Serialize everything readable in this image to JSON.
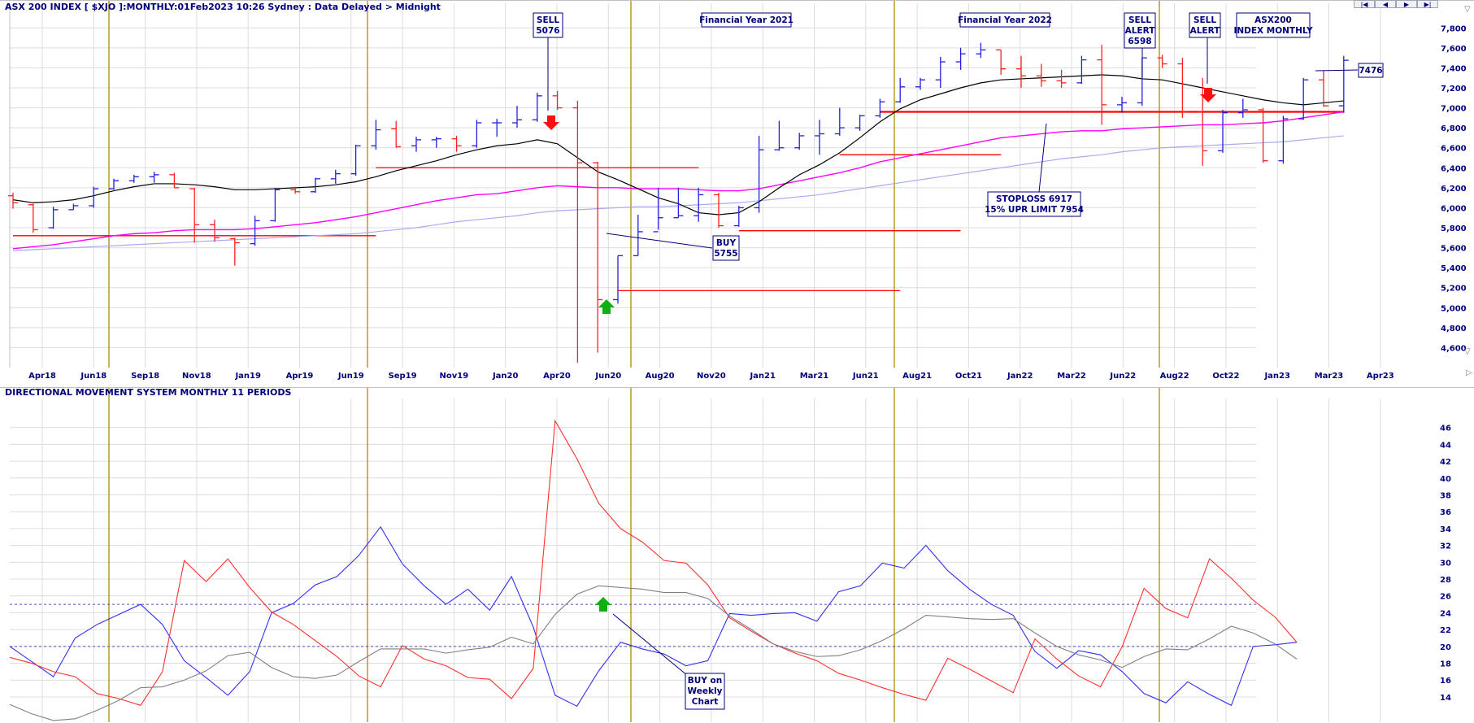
{
  "header": {
    "title": "ASX 200 INDEX [ $XJO ]:MONTHLY:01Feb2023 10:26 Sydney : Data Delayed > Midnight",
    "indicator_title": "DIRECTIONAL MOVEMENT SYSTEM MONTHLY 11 PERIODS"
  },
  "nav": {
    "first": "|◀",
    "prev": "◀",
    "next": "▶",
    "last": "▶|"
  },
  "colors": {
    "up_bar": "#2020e0",
    "down_bar": "#ff2020",
    "ma_short": "#000000",
    "ma_mid": "#ff00ff",
    "ma_long": "#aaaaf0",
    "sr_line": "#ff0000",
    "vline": "#b08a00",
    "grid": "#dcdcdc",
    "text": "#00007a",
    "di_plus": "#3030f0",
    "di_minus": "#ff3030",
    "adx": "#808080",
    "ref_line": "#5050c0"
  },
  "chart_data": [
    {
      "type": "ohlc",
      "name": "price",
      "xlabels": [
        "Apr18",
        "Jun18",
        "Sep18",
        "Nov18",
        "Jan19",
        "Apr19",
        "Jun19",
        "Sep19",
        "Nov19",
        "Jan20",
        "Apr20",
        "Jun20",
        "Aug20",
        "Nov20",
        "Jan21",
        "Mar21",
        "Jun21",
        "Aug21",
        "Oct21",
        "Jan22",
        "Mar22",
        "Jun22",
        "Aug22",
        "Oct22",
        "Jan23",
        "Mar23",
        "Apr23"
      ],
      "ylim": [
        4400,
        7900
      ],
      "yticks": [
        4600,
        4800,
        5000,
        5200,
        5400,
        5600,
        5800,
        6000,
        6200,
        6400,
        6600,
        6800,
        7000,
        7200,
        7400,
        7600,
        7800
      ],
      "bars": [
        {
          "o": 6120,
          "h": 6150,
          "l": 5990,
          "c": 6050
        },
        {
          "o": 6030,
          "h": 6040,
          "l": 5750,
          "c": 5780
        },
        {
          "o": 5800,
          "h": 6010,
          "l": 5790,
          "c": 5980
        },
        {
          "o": 5980,
          "h": 6040,
          "l": 5980,
          "c": 6020
        },
        {
          "o": 6020,
          "h": 6210,
          "l": 6000,
          "c": 6190
        },
        {
          "o": 6190,
          "h": 6290,
          "l": 6180,
          "c": 6270
        },
        {
          "o": 6270,
          "h": 6330,
          "l": 6250,
          "c": 6310
        },
        {
          "o": 6310,
          "h": 6360,
          "l": 6250,
          "c": 6330
        },
        {
          "o": 6330,
          "h": 6350,
          "l": 6200,
          "c": 6200
        },
        {
          "o": 6190,
          "h": 6200,
          "l": 5650,
          "c": 5830
        },
        {
          "o": 5830,
          "h": 5880,
          "l": 5660,
          "c": 5700
        },
        {
          "o": 5690,
          "h": 5700,
          "l": 5420,
          "c": 5650
        },
        {
          "o": 5640,
          "h": 5920,
          "l": 5620,
          "c": 5870
        },
        {
          "o": 5870,
          "h": 6200,
          "l": 5860,
          "c": 6180
        },
        {
          "o": 6180,
          "h": 6210,
          "l": 6140,
          "c": 6160
        },
        {
          "o": 6160,
          "h": 6300,
          "l": 6150,
          "c": 6290
        },
        {
          "o": 6290,
          "h": 6380,
          "l": 6240,
          "c": 6340
        },
        {
          "o": 6340,
          "h": 6630,
          "l": 6320,
          "c": 6620
        },
        {
          "o": 6620,
          "h": 6880,
          "l": 6580,
          "c": 6780
        },
        {
          "o": 6790,
          "h": 6870,
          "l": 6600,
          "c": 6610
        },
        {
          "o": 6620,
          "h": 6710,
          "l": 6560,
          "c": 6680
        },
        {
          "o": 6680,
          "h": 6710,
          "l": 6600,
          "c": 6690
        },
        {
          "o": 6690,
          "h": 6720,
          "l": 6560,
          "c": 6620
        },
        {
          "o": 6620,
          "h": 6880,
          "l": 6600,
          "c": 6850
        },
        {
          "o": 6850,
          "h": 6890,
          "l": 6710,
          "c": 6850
        },
        {
          "o": 6850,
          "h": 7020,
          "l": 6800,
          "c": 6880
        },
        {
          "o": 6880,
          "h": 7150,
          "l": 6860,
          "c": 7120
        },
        {
          "o": 7120,
          "h": 7170,
          "l": 6980,
          "c": 7000
        },
        {
          "o": 7000,
          "h": 7070,
          "l": 4450,
          "c": 6450
        },
        {
          "o": 6450,
          "h": 6460,
          "l": 4550,
          "c": 5080
        },
        {
          "o": 5080,
          "h": 5520,
          "l": 5040,
          "c": 5520
        },
        {
          "o": 5520,
          "h": 5930,
          "l": 5520,
          "c": 5760
        },
        {
          "o": 5760,
          "h": 6200,
          "l": 5780,
          "c": 5900
        },
        {
          "o": 5900,
          "h": 6200,
          "l": 5900,
          "c": 5920
        },
        {
          "o": 5920,
          "h": 6200,
          "l": 5860,
          "c": 6130
        },
        {
          "o": 6130,
          "h": 6150,
          "l": 5800,
          "c": 5820
        },
        {
          "o": 5820,
          "h": 6020,
          "l": 5810,
          "c": 6000
        },
        {
          "o": 6000,
          "h": 6720,
          "l": 5950,
          "c": 6580
        },
        {
          "o": 6580,
          "h": 6870,
          "l": 6570,
          "c": 6600
        },
        {
          "o": 6600,
          "h": 6750,
          "l": 6580,
          "c": 6720
        },
        {
          "o": 6720,
          "h": 6880,
          "l": 6530,
          "c": 6740
        },
        {
          "o": 6740,
          "h": 7000,
          "l": 6720,
          "c": 6800
        },
        {
          "o": 6800,
          "h": 6930,
          "l": 6770,
          "c": 6920
        },
        {
          "o": 6920,
          "h": 7090,
          "l": 6900,
          "c": 7060
        },
        {
          "o": 7060,
          "h": 7300,
          "l": 7050,
          "c": 7210
        },
        {
          "o": 7210,
          "h": 7300,
          "l": 7180,
          "c": 7280
        },
        {
          "o": 7280,
          "h": 7510,
          "l": 7200,
          "c": 7460
        },
        {
          "o": 7460,
          "h": 7600,
          "l": 7380,
          "c": 7540
        },
        {
          "o": 7540,
          "h": 7650,
          "l": 7500,
          "c": 7580
        },
        {
          "o": 7580,
          "h": 7580,
          "l": 7330,
          "c": 7390
        },
        {
          "o": 7390,
          "h": 7520,
          "l": 7200,
          "c": 7320
        },
        {
          "o": 7320,
          "h": 7440,
          "l": 7210,
          "c": 7270
        },
        {
          "o": 7270,
          "h": 7380,
          "l": 7200,
          "c": 7250
        },
        {
          "o": 7250,
          "h": 7520,
          "l": 7240,
          "c": 7480
        },
        {
          "o": 7480,
          "h": 7630,
          "l": 6830,
          "c": 7030
        },
        {
          "o": 7030,
          "h": 7110,
          "l": 6950,
          "c": 7050
        },
        {
          "o": 7050,
          "h": 7500,
          "l": 7020,
          "c": 7500
        },
        {
          "o": 7500,
          "h": 7530,
          "l": 7400,
          "c": 7440
        },
        {
          "o": 7440,
          "h": 7500,
          "l": 6900,
          "c": 6960
        },
        {
          "o": 6960,
          "h": 7300,
          "l": 6420,
          "c": 6570
        },
        {
          "o": 6570,
          "h": 6980,
          "l": 6550,
          "c": 6950
        },
        {
          "o": 6950,
          "h": 7090,
          "l": 6900,
          "c": 6980
        },
        {
          "o": 6980,
          "h": 7000,
          "l": 6450,
          "c": 6470
        },
        {
          "o": 6470,
          "h": 6920,
          "l": 6440,
          "c": 6890
        },
        {
          "o": 6890,
          "h": 7300,
          "l": 6880,
          "c": 7280
        },
        {
          "o": 7280,
          "h": 7370,
          "l": 7010,
          "c": 7020
        },
        {
          "o": 7020,
          "h": 7520,
          "l": 6950,
          "c": 7476
        }
      ],
      "ma_short": [
        6080,
        6050,
        6060,
        6080,
        6120,
        6170,
        6210,
        6240,
        6240,
        6230,
        6210,
        6180,
        6180,
        6190,
        6200,
        6210,
        6230,
        6260,
        6310,
        6370,
        6420,
        6470,
        6530,
        6580,
        6620,
        6640,
        6680,
        6640,
        6500,
        6360,
        6280,
        6190,
        6100,
        6040,
        5950,
        5930,
        5950,
        6060,
        6200,
        6330,
        6430,
        6550,
        6700,
        6860,
        6990,
        7080,
        7140,
        7200,
        7250,
        7280,
        7290,
        7300,
        7310,
        7320,
        7330,
        7320,
        7290,
        7280,
        7240,
        7200,
        7160,
        7120,
        7080,
        7050,
        7030,
        7050,
        7070
      ],
      "ma_mid": [
        5590,
        5610,
        5630,
        5660,
        5690,
        5720,
        5740,
        5750,
        5770,
        5780,
        5780,
        5780,
        5790,
        5810,
        5830,
        5850,
        5880,
        5910,
        5950,
        5990,
        6030,
        6070,
        6100,
        6130,
        6140,
        6170,
        6200,
        6220,
        6210,
        6200,
        6200,
        6190,
        6190,
        6190,
        6180,
        6170,
        6170,
        6190,
        6230,
        6270,
        6310,
        6350,
        6400,
        6460,
        6500,
        6540,
        6580,
        6620,
        6660,
        6700,
        6720,
        6740,
        6760,
        6770,
        6770,
        6790,
        6800,
        6810,
        6820,
        6830,
        6830,
        6840,
        6850,
        6870,
        6900,
        6930,
        6960
      ],
      "ma_long": [
        5570,
        5580,
        5590,
        5600,
        5610,
        5620,
        5630,
        5640,
        5650,
        5660,
        5670,
        5680,
        5690,
        5700,
        5710,
        5720,
        5730,
        5740,
        5760,
        5780,
        5800,
        5830,
        5860,
        5880,
        5900,
        5920,
        5950,
        5970,
        5980,
        5990,
        6000,
        6010,
        6010,
        6020,
        6030,
        6040,
        6050,
        6070,
        6090,
        6110,
        6130,
        6160,
        6190,
        6220,
        6250,
        6280,
        6310,
        6340,
        6370,
        6400,
        6430,
        6460,
        6490,
        6510,
        6530,
        6560,
        6580,
        6600,
        6610,
        6620,
        6630,
        6640,
        6650,
        6660,
        6680,
        6700,
        6720
      ],
      "hlines": [
        {
          "y": 5720,
          "x0": 0,
          "x1": 18
        },
        {
          "y": 6400,
          "x0": 18,
          "x1": 34
        },
        {
          "y": 6530,
          "x0": 41,
          "x1": 49
        },
        {
          "y": 5770,
          "x0": 36,
          "x1": 47
        },
        {
          "y": 5170,
          "x0": 30,
          "x1": 44
        },
        {
          "y": 6960,
          "x0": 43,
          "x1": 66
        }
      ],
      "annotations": [
        {
          "lines": [
            "SELL",
            "5076"
          ]
        },
        {
          "lines": [
            "Financial Year 2021"
          ]
        },
        {
          "lines": [
            "Financial Year 2022"
          ]
        },
        {
          "lines": [
            "SELL",
            "ALERT",
            "6598"
          ]
        },
        {
          "lines": [
            "SELL",
            "ALERT"
          ]
        },
        {
          "lines": [
            "ASX200",
            "INDEX MONTHLY"
          ]
        },
        {
          "lines": [
            "7476"
          ]
        },
        {
          "lines": [
            "STOPLOSS 6917",
            "15% UPR LIMIT 7954"
          ]
        },
        {
          "lines": [
            "BUY",
            "5755"
          ]
        }
      ]
    },
    {
      "type": "line",
      "name": "directional_movement",
      "ylim": [
        11,
        48
      ],
      "yticks": [
        14,
        16,
        18,
        20,
        22,
        24,
        26,
        28,
        30,
        32,
        34,
        36,
        38,
        40,
        42,
        44,
        46
      ],
      "ref_lines": [
        20,
        25
      ],
      "series": [
        {
          "values": [
            20.0,
            18.2,
            16.4,
            21.0,
            22.6,
            23.8,
            25.0,
            22.6,
            18.3,
            16.3,
            14.2,
            17.0,
            24.0,
            25.1,
            27.3,
            28.3,
            30.8,
            34.2,
            29.8,
            27.2,
            25.0,
            26.8,
            24.3,
            28.3,
            22.3,
            14.2,
            12.9,
            17.1,
            20.5,
            19.7,
            19.1,
            17.7,
            18.3,
            23.9,
            23.7,
            23.9,
            24.0,
            23.0,
            26.5,
            27.2,
            29.9,
            29.3,
            32.0,
            29.0,
            26.8,
            25.0,
            23.7,
            19.4,
            17.4,
            19.5,
            19.0,
            17.0,
            14.4,
            13.3,
            15.8,
            14.3,
            13.0,
            20.0,
            20.2,
            20.5
          ]
        },
        {
          "values": [
            18.7,
            18.0,
            17.0,
            16.4,
            14.4,
            13.8,
            13.0,
            17.0,
            30.2,
            27.7,
            30.4,
            27.0,
            24.1,
            22.6,
            20.7,
            18.8,
            16.5,
            15.2,
            20.1,
            18.5,
            17.7,
            16.3,
            16.1,
            13.8,
            17.4,
            46.8,
            42.3,
            37.0,
            34.0,
            32.4,
            30.2,
            29.9,
            27.3,
            23.4,
            21.8,
            20.3,
            19.2,
            18.3,
            16.8,
            16.0,
            15.1,
            14.3,
            13.6,
            18.6,
            17.3,
            15.9,
            14.5,
            20.9,
            18.5,
            16.5,
            15.2,
            20.0,
            26.9,
            24.5,
            23.4,
            30.4,
            28.1,
            25.5,
            23.5,
            20.5
          ]
        },
        {
          "values": [
            13.1,
            12.0,
            11.2,
            11.4,
            12.4,
            13.6,
            15.1,
            15.2,
            16.0,
            17.1,
            18.9,
            19.3,
            17.5,
            16.4,
            16.2,
            16.6,
            18.2,
            19.7,
            19.7,
            19.7,
            19.2,
            19.6,
            19.9,
            21.1,
            20.3,
            23.8,
            26.2,
            27.2,
            27.0,
            26.8,
            26.4,
            26.4,
            25.7,
            23.6,
            22.0,
            20.3,
            19.4,
            18.8,
            18.9,
            19.6,
            20.7,
            22.1,
            23.7,
            23.5,
            23.3,
            23.2,
            23.3,
            21.6,
            20.0,
            19.0,
            18.4,
            17.5,
            18.8,
            19.7,
            19.6,
            20.9,
            22.4,
            21.6,
            20.3,
            18.5
          ]
        }
      ]
    }
  ]
}
